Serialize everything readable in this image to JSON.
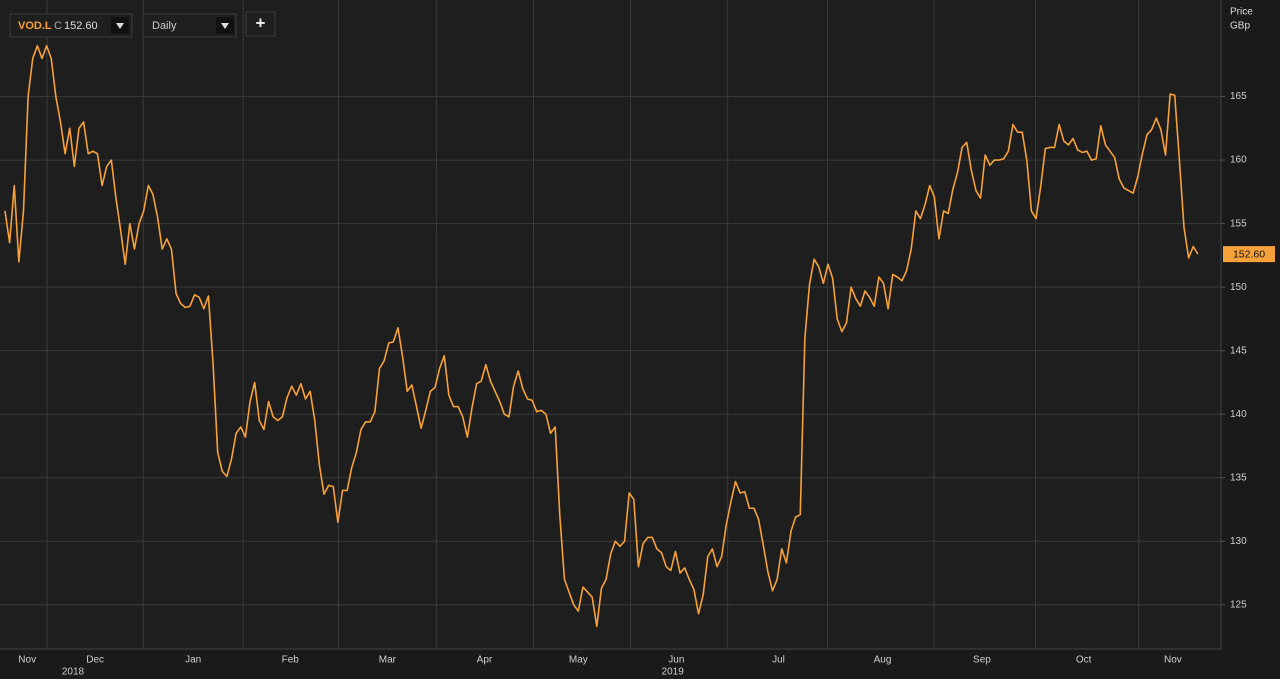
{
  "toolbar": {
    "ticker": "VOD.L",
    "quote_prefix": "C",
    "quote": "152.60",
    "interval": "Daily",
    "add": "+"
  },
  "chart_data": {
    "type": "line",
    "y_axis_title": "Price",
    "y_axis_unit": "GBp",
    "series": [
      {
        "name": "VOD.L",
        "color": "#f7a13b",
        "values": [
          156,
          153.5,
          158,
          152,
          156,
          165,
          168,
          169,
          168,
          169,
          168,
          165,
          163,
          160.5,
          162.5,
          159.5,
          162.5,
          163,
          160.5,
          160.7,
          160.5,
          158,
          159.5,
          160,
          157,
          154.5,
          151.8,
          155,
          153,
          155,
          156,
          158,
          157.3,
          155.5,
          153,
          153.8,
          153,
          149.5,
          148.7,
          148.4,
          148.5,
          149.4,
          149.2,
          148.3,
          149.3,
          144,
          137,
          135.5,
          135.1,
          136.5,
          138.5,
          139,
          138.2,
          141,
          142.5,
          139.5,
          138.8,
          141,
          139.8,
          139.5,
          139.8,
          141.3,
          142.2,
          141.5,
          142.4,
          141.2,
          141.8,
          139.5,
          136,
          133.7,
          134.4,
          134.3,
          131.5,
          134,
          134,
          135.8,
          137,
          138.8,
          139.4,
          139.4,
          140.2,
          143.6,
          144.2,
          145.6,
          145.7,
          146.8,
          144.5,
          141.8,
          142.3,
          140.6,
          138.9,
          140.3,
          141.8,
          142.1,
          143.6,
          144.6,
          141.5,
          140.6,
          140.6,
          139.8,
          138.2,
          140.5,
          142.4,
          142.6,
          143.9,
          142.6,
          141.8,
          141,
          140,
          139.8,
          142.2,
          143.4,
          142,
          141.2,
          141.1,
          140.2,
          140.3,
          140,
          138.5,
          139,
          132,
          127,
          126,
          125,
          124.5,
          126.4,
          126,
          125.6,
          123.3,
          126.3,
          127,
          129,
          130,
          129.6,
          130,
          133.8,
          133.3,
          128,
          129.8,
          130.3,
          130.3,
          129.4,
          129.1,
          128,
          127.7,
          129.2,
          127.5,
          127.9,
          127,
          126.2,
          124.3,
          125.8,
          128.8,
          129.4,
          128,
          128.8,
          131.3,
          133.1,
          134.7,
          133.8,
          133.9,
          132.6,
          132.6,
          131.7,
          129.7,
          127.6,
          126.1,
          127,
          129.4,
          128.3,
          130.8,
          131.9,
          132.1,
          146,
          150.2,
          152.2,
          151.6,
          150.3,
          151.8,
          150.7,
          147.5,
          146.5,
          147.2,
          150,
          149.1,
          148.5,
          149.7,
          149.2,
          148.5,
          150.8,
          150.3,
          148.3,
          151,
          150.8,
          150.5,
          151.3,
          153,
          156,
          155.4,
          156.5,
          158,
          157.1,
          153.8,
          156,
          155.8,
          157.7,
          159,
          161,
          161.4,
          159.2,
          157.6,
          157,
          160.4,
          159.6,
          160,
          160,
          160.1,
          160.7,
          162.8,
          162.2,
          162.2,
          160,
          156,
          155.4,
          157.9,
          160.9,
          161,
          161,
          162.8,
          161.5,
          161.2,
          161.7,
          160.8,
          160.6,
          160.7,
          160,
          160.1,
          162.7,
          161.2,
          160.7,
          160.2,
          158.5,
          157.8,
          157.6,
          157.4,
          158.7,
          160.5,
          162,
          162.4,
          163.3,
          162.4,
          160.4,
          165.2,
          165.1,
          160,
          154.7,
          152.3,
          153.2,
          152.6
        ]
      }
    ],
    "last_label": "152.60",
    "xlim": [
      -1.08,
      263
    ],
    "ylim": [
      121.6,
      172.6
    ],
    "yticks": [
      125,
      130,
      135,
      140,
      145,
      150,
      155,
      160,
      165
    ],
    "xticks": [
      {
        "value": 4.8,
        "label": "Nov"
      },
      {
        "value": 19.5,
        "label": "Dec"
      },
      {
        "value": 40.7,
        "label": "Jan"
      },
      {
        "value": 61.7,
        "label": "Feb"
      },
      {
        "value": 82.7,
        "label": "Mar"
      },
      {
        "value": 103.7,
        "label": "Apr"
      },
      {
        "value": 124,
        "label": "May"
      },
      {
        "value": 145.2,
        "label": "Jun"
      },
      {
        "value": 167.3,
        "label": "Jul"
      },
      {
        "value": 189.8,
        "label": "Aug"
      },
      {
        "value": 211.3,
        "label": "Sep"
      },
      {
        "value": 233.3,
        "label": "Oct"
      },
      {
        "value": 252.6,
        "label": "Nov"
      }
    ],
    "year_labels": [
      {
        "value": 14.7,
        "label": "2018"
      },
      {
        "value": 144.4,
        "label": "2019"
      }
    ],
    "xgrid": [
      9.1,
      29.9,
      51.5,
      72.1,
      93.3,
      114.3,
      135.3,
      156.3,
      177.9,
      200.9,
      222.9,
      245.2
    ],
    "grid": true
  }
}
